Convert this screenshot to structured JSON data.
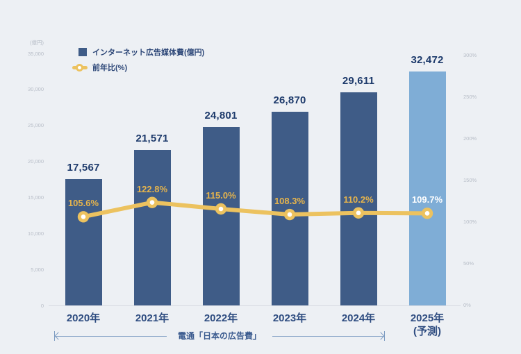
{
  "chart_data": {
    "type": "bar",
    "subtype": "bar-line-combo",
    "title": "",
    "categories": [
      {
        "label": "2020年"
      },
      {
        "label": "2021年"
      },
      {
        "label": "2022年"
      },
      {
        "label": "2023年"
      },
      {
        "label": "2024年"
      },
      {
        "label": "2025年",
        "sublabel": "(予測)"
      }
    ],
    "series": [
      {
        "name": "インターネット広告媒体費(億円)",
        "type": "bar",
        "values": [
          17567,
          21571,
          24801,
          26870,
          29611,
          32472
        ],
        "value_labels": [
          "17,567",
          "21,571",
          "24,801",
          "26,870",
          "29,611",
          "32,472"
        ]
      },
      {
        "name": "前年比(%)",
        "type": "line",
        "values": [
          105.6,
          122.8,
          115.0,
          108.3,
          110.2,
          109.7
        ],
        "value_labels": [
          "105.6%",
          "122.8%",
          "115.0%",
          "108.3%",
          "110.2%",
          "109.7%"
        ]
      }
    ],
    "forecast_index": 5,
    "left_axis": {
      "unit_label": "(億円)",
      "tick_labels": [
        "35,000",
        "30,000",
        "25,000",
        "20,000",
        "15,000",
        "10,000",
        "5,000",
        "0"
      ],
      "min": 0,
      "max": 35000
    },
    "right_axis": {
      "tick_labels": [
        "300%",
        "250%",
        "200%",
        "150%",
        "100%",
        "50%",
        "0%"
      ],
      "min": 0,
      "max": 300
    },
    "source_note": "電通「日本の広告費」",
    "legend_position": "top-left",
    "grid": false,
    "colors": {
      "background": "#edf0f4",
      "bar": "#3f5c87",
      "bar_forecast": "#7fadd6",
      "line": "#ecc25f",
      "marker_center": "#ffffff",
      "value_label": "#1d3a6b",
      "pct_label": "#e6b44c",
      "pct_label_on_forecast": "#ffffff",
      "x_label": "#2e4c80",
      "axis_tick": "#b7bdc7",
      "axis_line": "#d8dce3",
      "annotation": "#7e9dc3"
    }
  }
}
